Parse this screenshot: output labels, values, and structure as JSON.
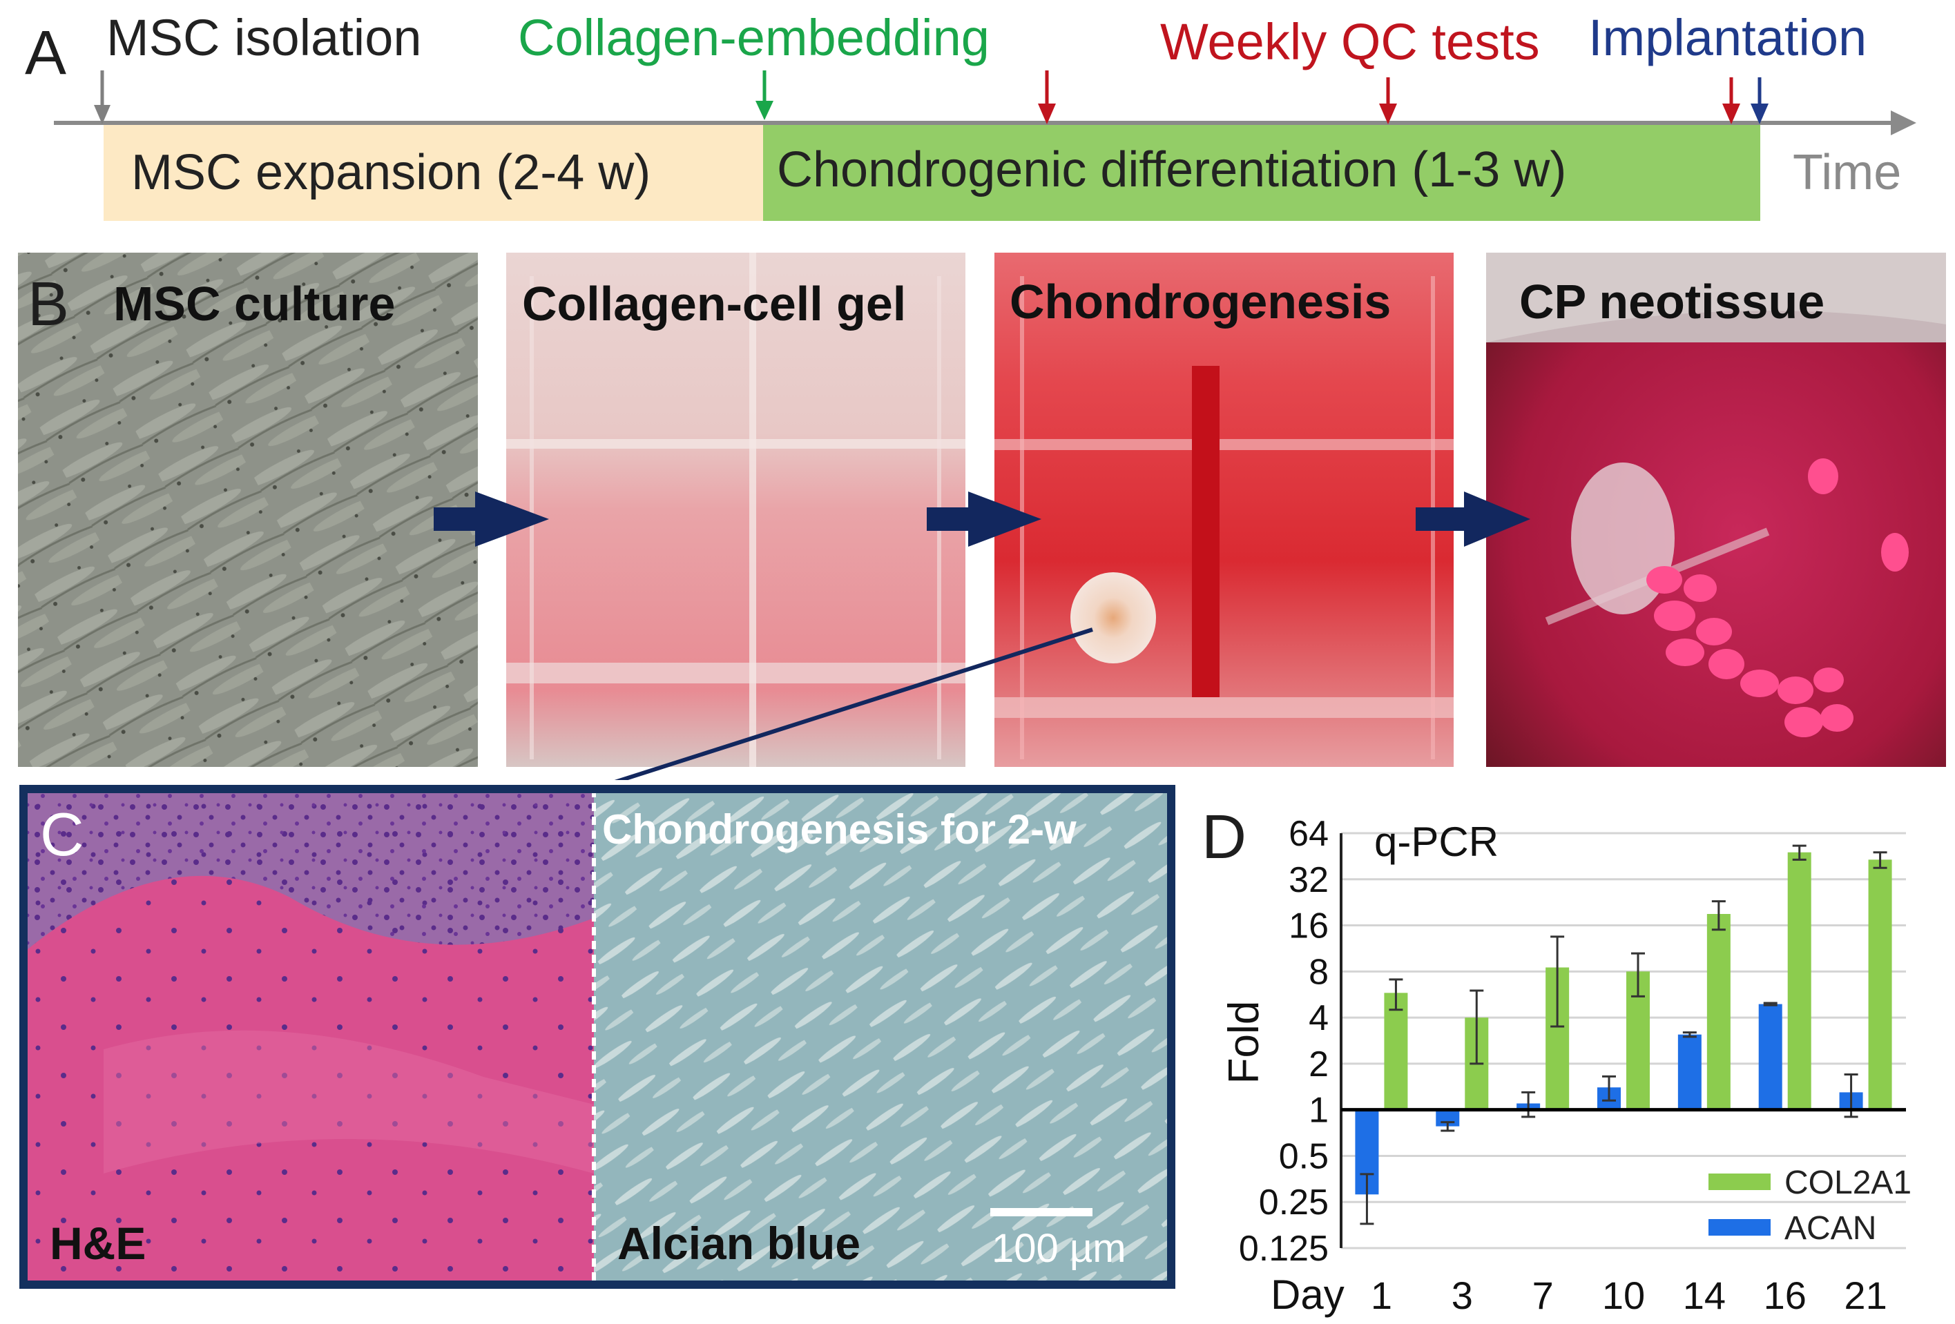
{
  "panel_a": {
    "letter": "A",
    "events": {
      "msc_isolation": "MSC isolation",
      "collagen_embedding": "Collagen-embedding",
      "weekly_qc_tests": "Weekly QC tests",
      "implantation": "Implantation"
    },
    "phases": {
      "expansion": "MSC expansion (2-4 w)",
      "differentiation": "Chondrogenic differentiation (1-3 w)"
    },
    "axis_label": "Time",
    "colors": {
      "isolation": "#808080",
      "embedding": "#1aa64a",
      "qc": "#c0141e",
      "implantation": "#1f3a8a",
      "expansion_bar": "#fde9c4",
      "differentiation_bar": "#93cd67"
    }
  },
  "panel_b": {
    "letter": "B",
    "photos": [
      {
        "title": "MSC culture"
      },
      {
        "title": "Collagen-cell gel"
      },
      {
        "title": "Chondrogenesis"
      },
      {
        "title": "CP neotissue"
      }
    ],
    "arrow_color": "#12275e"
  },
  "panel_c": {
    "letter": "C",
    "subtitle": "Chondrogenesis for 2-w",
    "left_label": "H&E",
    "right_label": "Alcian blue",
    "scale_bar": "100 µm",
    "frame_color": "#14305e"
  },
  "panel_d": {
    "letter": "D",
    "assay": "q-PCR"
  },
  "chart_data": {
    "type": "bar",
    "title": "q-PCR",
    "xlabel": "Day",
    "ylabel": "Fold",
    "y_scale": "log2",
    "ylim": [
      0.125,
      64
    ],
    "baseline": 1,
    "y_ticks": [
      "64",
      "32",
      "16",
      "8",
      "4",
      "2",
      "1",
      "0.5",
      "0.25",
      "0.125"
    ],
    "categories": [
      "1",
      "3",
      "7",
      "10",
      "14",
      "16",
      "21"
    ],
    "series": [
      {
        "name": "ACAN",
        "color": "#1e6fe6",
        "values": [
          0.28,
          0.78,
          1.1,
          1.4,
          3.1,
          4.9,
          1.3
        ],
        "errors": [
          0.1,
          0.05,
          0.2,
          0.25,
          0.1,
          0.08,
          0.4
        ]
      },
      {
        "name": "COL2A1",
        "color": "#8ccc4e",
        "values": [
          5.8,
          4.0,
          8.5,
          8.0,
          19,
          48,
          43
        ],
        "errors": [
          1.3,
          2.0,
          5.0,
          2.5,
          4.0,
          5.0,
          5.0
        ]
      }
    ],
    "legend": [
      "COL2A1",
      "ACAN"
    ],
    "legend_position": "bottom-right",
    "grid": true
  }
}
